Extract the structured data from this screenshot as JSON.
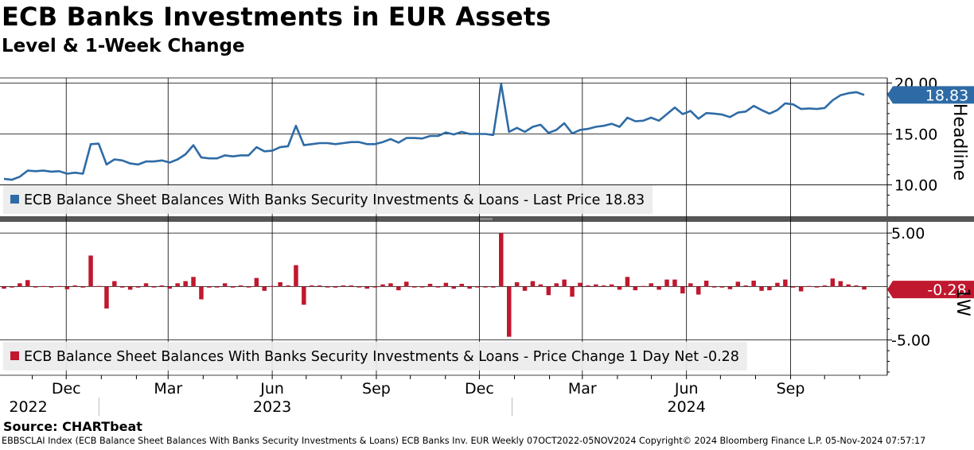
{
  "title": "ECB Banks Investments in EUR Assets",
  "subtitle": "Level & 1-Week Change",
  "source": "Source: CHARTbeat",
  "footer": "EBBSCLAI Index (ECB Balance Sheet Balances With Banks Security Investments & Loans) ECB Banks Inv. EUR  Weekly 07OCT2022-05NOV2024 Copyright© 2024 Bloomberg Finance L.P. 05-Nov-2024 07:57:17",
  "colors": {
    "line": "#2e6ba6",
    "bar": "#c0182f",
    "grid": "#000000"
  },
  "chart_data": [
    {
      "type": "line",
      "title": "Headline",
      "ylabel": "Headline",
      "ylim": [
        7.0,
        20.5
      ],
      "yticks": [
        "10.00",
        "15.00",
        "20.00"
      ],
      "legend": "ECB Balance Sheet Balances With Banks Security Investments & Loans - Last Price 18.83",
      "last_value_label": "18.83",
      "x_start": "07OCT2022",
      "x_end": "05NOV2024",
      "frequency": "weekly",
      "values": [
        10.6,
        10.5,
        10.8,
        11.4,
        11.35,
        11.4,
        11.3,
        11.35,
        11.1,
        11.2,
        11.1,
        14.0,
        14.05,
        12.0,
        12.5,
        12.4,
        12.1,
        12.0,
        12.3,
        12.3,
        12.4,
        12.2,
        12.5,
        13.0,
        13.9,
        12.7,
        12.6,
        12.6,
        12.9,
        12.8,
        12.9,
        12.9,
        13.7,
        13.3,
        13.35,
        13.7,
        13.8,
        15.8,
        13.9,
        14.0,
        14.1,
        14.1,
        14.0,
        14.1,
        14.2,
        14.2,
        14.0,
        14.0,
        14.2,
        14.5,
        14.15,
        14.6,
        14.6,
        14.55,
        14.8,
        14.8,
        15.15,
        14.95,
        15.2,
        15.0,
        15.0,
        15.0,
        14.9,
        19.9,
        15.2,
        15.6,
        15.2,
        15.7,
        15.9,
        15.1,
        15.4,
        16.05,
        15.05,
        15.4,
        15.5,
        15.7,
        15.8,
        16.0,
        15.7,
        16.6,
        16.25,
        16.3,
        16.6,
        16.3,
        16.95,
        17.6,
        16.95,
        17.25,
        16.5,
        17.05,
        17.0,
        16.9,
        16.65,
        17.1,
        17.2,
        17.75,
        17.35,
        17.0,
        17.35,
        18.0,
        17.9,
        17.45,
        17.5,
        17.45,
        17.55,
        18.3,
        18.8,
        19.0,
        19.1,
        18.83
      ]
    },
    {
      "type": "bar",
      "title": "1W",
      "ylabel": "1W",
      "ylim": [
        -8.3,
        5.9
      ],
      "yticks": [
        "5.00",
        "-5.00"
      ],
      "legend": "ECB Balance Sheet Balances With Banks Security Investments & Loans - Price Change 1 Day Net -0.28",
      "last_value_label": "-0.28",
      "values": [
        -0.2,
        -0.1,
        0.3,
        0.6,
        -0.05,
        0.05,
        -0.1,
        0.05,
        -0.25,
        0.1,
        -0.1,
        2.9,
        0.05,
        -2.05,
        0.5,
        -0.1,
        -0.3,
        -0.1,
        0.3,
        0.0,
        0.1,
        -0.2,
        0.3,
        0.5,
        0.9,
        -1.2,
        -0.1,
        0.0,
        0.3,
        -0.1,
        0.1,
        0.0,
        0.8,
        -0.4,
        0.05,
        0.4,
        0.1,
        2.0,
        -1.7,
        0.1,
        0.1,
        0.0,
        -0.1,
        0.1,
        0.1,
        0.0,
        -0.2,
        0.0,
        0.2,
        0.3,
        -0.35,
        0.45,
        0.0,
        -0.05,
        0.25,
        0.0,
        0.35,
        -0.2,
        0.25,
        -0.2,
        0.0,
        0.0,
        -0.1,
        5.0,
        -4.7,
        0.4,
        -0.4,
        0.5,
        0.2,
        -0.8,
        0.3,
        0.65,
        -0.95,
        0.35,
        0.1,
        0.2,
        0.1,
        0.2,
        -0.3,
        0.9,
        -0.35,
        0.05,
        0.3,
        -0.3,
        0.65,
        0.65,
        -0.65,
        0.3,
        -0.75,
        0.55,
        -0.05,
        -0.1,
        -0.25,
        0.45,
        0.1,
        0.55,
        -0.4,
        -0.35,
        0.35,
        0.65,
        -0.1,
        -0.45,
        0.05,
        -0.05,
        0.1,
        0.75,
        0.5,
        0.2,
        0.1,
        -0.28
      ]
    }
  ],
  "x_axis": {
    "months": [
      {
        "label": "Dec",
        "date": "2022-12-01"
      },
      {
        "label": "Mar",
        "date": "2023-03-01"
      },
      {
        "label": "Jun",
        "date": "2023-06-01"
      },
      {
        "label": "Sep",
        "date": "2023-09-01"
      },
      {
        "label": "Dec",
        "date": "2023-12-01"
      },
      {
        "label": "Mar",
        "date": "2024-03-01"
      },
      {
        "label": "Jun",
        "date": "2024-06-01"
      },
      {
        "label": "Sep",
        "date": "2024-09-01"
      }
    ],
    "years": [
      {
        "label": "2022",
        "date": "2022-11-01"
      },
      {
        "label": "2023",
        "date": "2023-06-01"
      },
      {
        "label": "2024",
        "date": "2024-06-01"
      }
    ],
    "year_breaks": [
      "2023-01-01",
      "2024-01-01"
    ],
    "start": "2022-10-07",
    "end": "2024-11-05"
  }
}
